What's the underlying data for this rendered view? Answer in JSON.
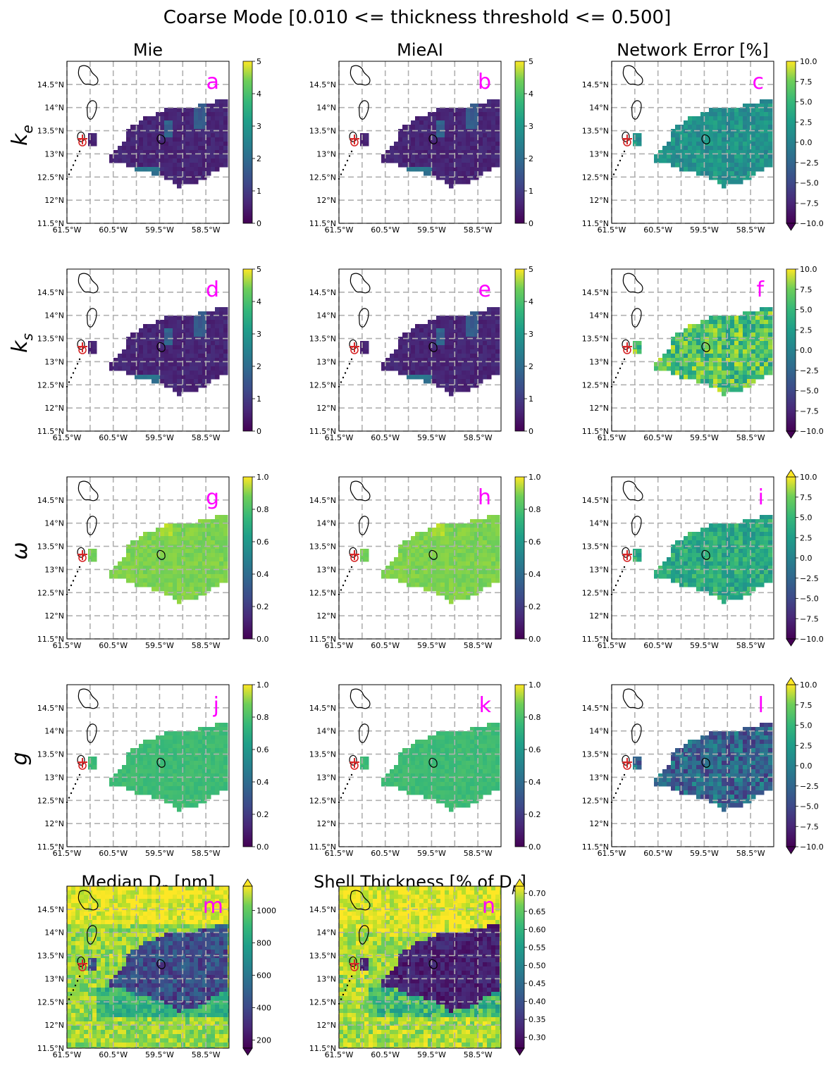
{
  "title": "Coarse Mode [0.010 <= thickness threshold <= 0.500]",
  "columns": [
    "Mie",
    "MieAI",
    "Network Error [%]"
  ],
  "rows": [
    {
      "label": "k",
      "sub": "e"
    },
    {
      "label": "k",
      "sub": "s"
    },
    {
      "label": "ω",
      "sub": ""
    },
    {
      "label": "g",
      "sub": ""
    }
  ],
  "bottom_titles": [
    {
      "main": "Median D",
      "sub": "p",
      "after": " [nm]"
    },
    {
      "main": "Shell Thickness [% of D",
      "sub": "p",
      "after": "]"
    }
  ],
  "panel_letters": [
    "a",
    "b",
    "c",
    "d",
    "e",
    "f",
    "g",
    "h",
    "i",
    "j",
    "k",
    "l",
    "m",
    "n"
  ],
  "axes": {
    "lat_ticks": [
      "14.5°N",
      "14°N",
      "13.5°N",
      "13°N",
      "12.5°N",
      "12°N",
      "11.5°N"
    ],
    "lon_ticks": [
      "61.5°W",
      "60.5°W",
      "59.5°W",
      "58.5°W"
    ],
    "lat_values": [
      14.5,
      14,
      13.5,
      13,
      12.5,
      12,
      11.5
    ],
    "lon_values": [
      -61.5,
      -60.5,
      -59.5,
      -58.5
    ],
    "extent": {
      "lon": [
        -61.5,
        -58.0
      ],
      "lat": [
        11.5,
        15.0
      ]
    }
  },
  "colorbars": {
    "ke": {
      "ticks": [
        "5",
        "4",
        "3",
        "2",
        "1",
        "0"
      ],
      "vmin": 0,
      "vmax": 5
    },
    "ks": {
      "ticks": [
        "5",
        "4",
        "3",
        "2",
        "1",
        "0"
      ],
      "vmin": 0,
      "vmax": 5
    },
    "w": {
      "ticks": [
        "1.0",
        "0.8",
        "0.6",
        "0.4",
        "0.2",
        "0.0"
      ],
      "vmin": 0,
      "vmax": 1
    },
    "g": {
      "ticks": [
        "1.0",
        "0.8",
        "0.6",
        "0.4",
        "0.2",
        "0.0"
      ],
      "vmin": 0,
      "vmax": 1
    },
    "err": {
      "ticks": [
        "10.0",
        "7.5",
        "5.0",
        "2.5",
        "0.0",
        "−2.5",
        "−5.0",
        "−7.5",
        "−10.0"
      ],
      "vmin": -10,
      "vmax": 10
    },
    "dp": {
      "ticks": [
        "1000",
        "800",
        "600",
        "400",
        "200"
      ],
      "vmin": 150,
      "vmax": 1150
    },
    "shell": {
      "ticks": [
        "0.70",
        "0.65",
        "0.60",
        "0.55",
        "0.50",
        "0.45",
        "0.40",
        "0.35",
        "0.30"
      ],
      "vmin": 0.27,
      "vmax": 0.72
    }
  },
  "colormap": "viridis",
  "colors": {
    "marker": "#d62728",
    "letters": "#ff00ff",
    "grid": "#b0b0b0"
  },
  "chart_data": {
    "type": "heatmap",
    "description_panels": [
      {
        "letter": "a",
        "row": "ke",
        "column": "Mie",
        "colorbar": [
          0,
          5
        ],
        "typical_value": 0.5,
        "max_value": 2.5
      },
      {
        "letter": "b",
        "row": "ke",
        "column": "MieAI",
        "colorbar": [
          0,
          5
        ],
        "typical_value": 0.5,
        "max_value": 2.5
      },
      {
        "letter": "c",
        "row": "ke",
        "column": "Network Error [%]",
        "colorbar": [
          -10,
          10
        ],
        "typical_value": 0.0
      },
      {
        "letter": "d",
        "row": "ks",
        "column": "Mie",
        "colorbar": [
          0,
          5
        ],
        "typical_value": 0.5,
        "max_value": 2.5
      },
      {
        "letter": "e",
        "row": "ks",
        "column": "MieAI",
        "colorbar": [
          0,
          5
        ],
        "typical_value": 0.5,
        "max_value": 2.5
      },
      {
        "letter": "f",
        "row": "ks",
        "column": "Network Error [%]",
        "colorbar": [
          -10,
          10
        ],
        "typical_value": 3.0
      },
      {
        "letter": "g",
        "row": "w",
        "column": "Mie",
        "colorbar": [
          0,
          1
        ],
        "typical_value": 0.8
      },
      {
        "letter": "h",
        "row": "w",
        "column": "MieAI",
        "colorbar": [
          0,
          1
        ],
        "typical_value": 0.8
      },
      {
        "letter": "i",
        "row": "w",
        "column": "Network Error [%]",
        "colorbar": [
          -10,
          10
        ],
        "typical_value": 2.0
      },
      {
        "letter": "j",
        "row": "g",
        "column": "Mie",
        "colorbar": [
          0,
          1
        ],
        "typical_value": 0.7
      },
      {
        "letter": "k",
        "row": "g",
        "column": "MieAI",
        "colorbar": [
          0,
          1
        ],
        "typical_value": 0.68
      },
      {
        "letter": "l",
        "row": "g",
        "column": "Network Error [%]",
        "colorbar": [
          -10,
          10
        ],
        "typical_value": -3.5
      },
      {
        "letter": "m",
        "row": "bottom",
        "column": "Median D_p [nm]",
        "colorbar": [
          150,
          1150
        ],
        "background_value": 1000,
        "plume_value": 350
      },
      {
        "letter": "n",
        "row": "bottom",
        "column": "Shell Thickness [% of D_p]",
        "colorbar": [
          0.27,
          0.72
        ],
        "background_value": 0.68,
        "plume_value": 0.3
      }
    ]
  }
}
